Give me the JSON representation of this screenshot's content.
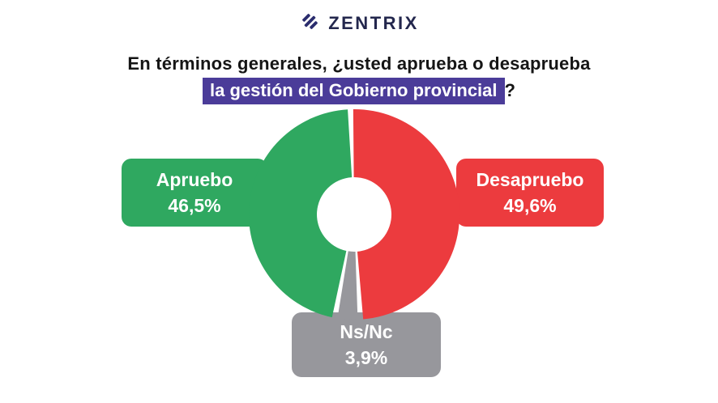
{
  "logo": {
    "text": "ZENTRIX",
    "color": "#23274d",
    "icon": "zentrix-diagonal-stripes-mark",
    "icon_color": "#2b2d6e"
  },
  "title": {
    "line1": "En términos generales, ¿usted aprueba o desaprueba",
    "line2_highlight": "la gestión del Gobierno provincial",
    "line2_suffix": "?",
    "highlight_color": "#4b3c99",
    "text_color": "#151515"
  },
  "chart_data": {
    "type": "pie",
    "subtype": "donut",
    "title": "En términos generales, ¿usted aprueba o desaprueba la gestión del Gobierno provincial?",
    "start_angle_deg": -2,
    "direction": "clockwise",
    "inner_hole": true,
    "hole_color": "#ffffff",
    "legend_position": "callout-boxes",
    "segments": [
      {
        "label": "Desapruebo",
        "value": 49.6,
        "display": "49,6%",
        "color": "#ec3b3e"
      },
      {
        "label": "Ns/Nc",
        "value": 3.9,
        "display": "3,9%",
        "color": "#97979c"
      },
      {
        "label": "Apruebo",
        "value": 46.5,
        "display": "46,5%",
        "color": "#2fa860"
      }
    ]
  }
}
